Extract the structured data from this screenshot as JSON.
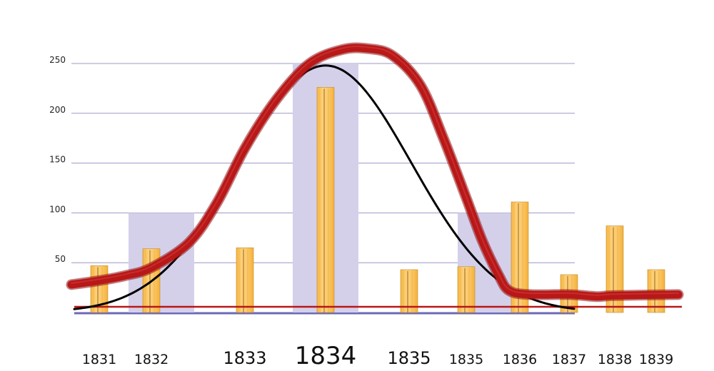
{
  "chart_data": {
    "type": "bar",
    "title": "",
    "xlabel": "",
    "ylabel": "",
    "ylim": [
      0,
      265
    ],
    "yticks": [
      "50",
      "100",
      "150",
      "200",
      "250"
    ],
    "grid": true,
    "legend": "none",
    "colors": {
      "grid": "#9c98c6",
      "baseline": "#6e68b8",
      "background_bar": "#d4d0ea",
      "bar": "#f9c15c",
      "bar_stroke": "#c28a2a",
      "bell_curve": "#000000",
      "trend_curve": "#b81818",
      "threshold": "#b81818"
    },
    "categories": [
      "1831",
      "1832",
      "1833",
      "1834",
      "1835",
      "1835",
      "1836",
      "1837",
      "1838",
      "1839"
    ],
    "label_sizes": [
      "small",
      "small",
      "medium",
      "large",
      "medium",
      "small",
      "small",
      "small",
      "small",
      "small"
    ],
    "series": [
      {
        "values": [
          47,
          64,
          65,
          226,
          43,
          46,
          111,
          38,
          87,
          43
        ]
      }
    ],
    "background_bars": [
      {
        "from": "1832",
        "value": 100
      },
      {
        "from": "1834",
        "value": 250
      },
      {
        "from": "1835",
        "value": 100
      }
    ],
    "bell_curve": {
      "peak": 248,
      "center": "1834"
    },
    "trend_curve": [
      [
        0,
        32
      ],
      [
        0.5,
        37
      ],
      [
        1,
        45
      ],
      [
        1.4,
        70
      ],
      [
        1.7,
        110
      ],
      [
        2,
        165
      ],
      [
        2.4,
        215
      ],
      [
        2.8,
        250
      ],
      [
        3.2,
        264
      ],
      [
        3.5,
        265
      ],
      [
        3.8,
        258
      ],
      [
        4.2,
        228
      ],
      [
        4.6,
        175
      ],
      [
        5,
        115
      ],
      [
        5.3,
        72
      ],
      [
        5.6,
        38
      ],
      [
        5.8,
        22
      ],
      [
        6.2,
        18
      ],
      [
        7,
        18
      ],
      [
        7.6,
        16
      ],
      [
        8,
        17
      ]
    ],
    "threshold_value": 5
  }
}
